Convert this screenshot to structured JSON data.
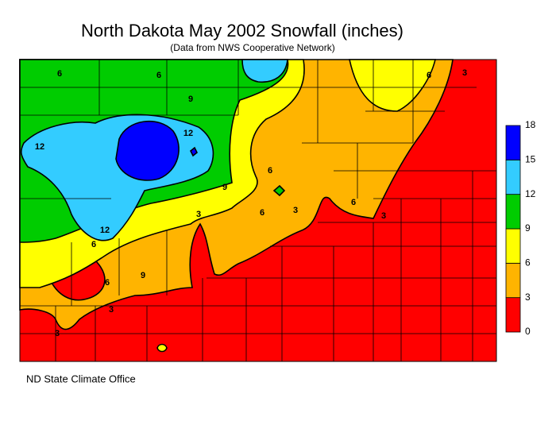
{
  "title": "North Dakota May 2002 Snowfall (inches)",
  "subtitle": "(Data from NWS Cooperative Network)",
  "legend": {
    "bins": [
      0,
      3,
      6,
      9,
      12,
      15,
      18
    ],
    "colors": [
      "#ff0000",
      "#ffb400",
      "#ffff00",
      "#00cc00",
      "#33ccff",
      "#0000ff"
    ]
  },
  "contour_labels": [
    6,
    6,
    9,
    12,
    12,
    9,
    6,
    6,
    3,
    6,
    3,
    6,
    3,
    6,
    12,
    9,
    6,
    3,
    3,
    3
  ],
  "footer": "ND State Climate Office"
}
